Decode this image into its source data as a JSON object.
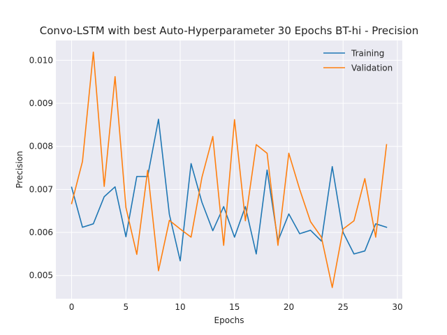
{
  "chart_data": {
    "type": "line",
    "title": "Convo-LSTM with best Auto-Hyperparameter 30 Epochs BT-hi - Precision",
    "xlabel": "Epochs",
    "ylabel": "Precision",
    "xlim": [
      -1.45,
      30.45
    ],
    "ylim": [
      0.00446,
      0.01046
    ],
    "xticks": [
      0,
      5,
      10,
      15,
      20,
      25,
      30
    ],
    "yticks": [
      0.005,
      0.006,
      0.007,
      0.008,
      0.009,
      0.01
    ],
    "ytick_labels": [
      "0.005",
      "0.006",
      "0.007",
      "0.008",
      "0.009",
      "0.010"
    ],
    "grid": true,
    "legend_position": "top-right",
    "x": [
      0,
      1,
      2,
      3,
      4,
      5,
      6,
      7,
      8,
      9,
      10,
      11,
      12,
      13,
      14,
      15,
      16,
      17,
      18,
      19,
      20,
      21,
      22,
      23,
      24,
      25,
      26,
      27,
      28,
      29
    ],
    "series": [
      {
        "name": "Training",
        "color": "#1f77b4",
        "values": [
          0.00705,
          0.00612,
          0.0062,
          0.00683,
          0.00706,
          0.0059,
          0.0073,
          0.0073,
          0.00863,
          0.00642,
          0.00534,
          0.0076,
          0.0067,
          0.00604,
          0.0066,
          0.00589,
          0.0066,
          0.0055,
          0.00745,
          0.0058,
          0.00643,
          0.00597,
          0.00605,
          0.0058,
          0.00753,
          0.006,
          0.0055,
          0.00557,
          0.0062,
          0.00612
        ]
      },
      {
        "name": "Validation",
        "color": "#ff7f0e",
        "values": [
          0.00667,
          0.00765,
          0.01019,
          0.00707,
          0.00962,
          0.00658,
          0.00549,
          0.00744,
          0.00511,
          0.00628,
          0.00608,
          0.00589,
          0.00728,
          0.00823,
          0.0057,
          0.00862,
          0.00627,
          0.00804,
          0.00784,
          0.0057,
          0.00784,
          0.007,
          0.00625,
          0.00589,
          0.00472,
          0.00608,
          0.00627,
          0.00725,
          0.00589,
          0.00804
        ]
      }
    ]
  }
}
